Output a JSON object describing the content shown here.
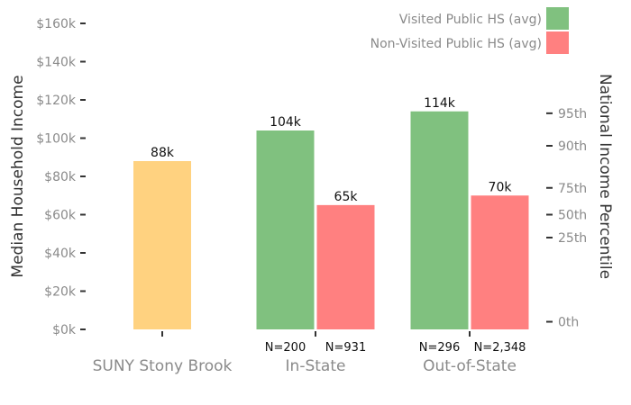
{
  "chart_data": {
    "type": "bar",
    "categories": [
      "SUNY Stony Brook",
      "In-State",
      "Out-of-State"
    ],
    "series": [
      {
        "name": "",
        "color": "#ffd280",
        "values": [
          88000,
          null,
          null
        ]
      },
      {
        "name": "Visited Public HS (avg)",
        "color": "#80c17f",
        "values": [
          null,
          104000,
          114000
        ]
      },
      {
        "name": "Non-Visited Public HS (avg)",
        "color": "#ff8080",
        "values": [
          null,
          65000,
          70000
        ]
      }
    ],
    "data_labels": [
      {
        "category": "SUNY Stony Brook",
        "series": 0,
        "text": "88k"
      },
      {
        "category": "In-State",
        "series": 1,
        "text": "104k"
      },
      {
        "category": "In-State",
        "series": 2,
        "text": "65k"
      },
      {
        "category": "Out-of-State",
        "series": 1,
        "text": "114k"
      },
      {
        "category": "Out-of-State",
        "series": 2,
        "text": "70k"
      }
    ],
    "n_labels": [
      {
        "category": "In-State",
        "series": 1,
        "text": "N=200"
      },
      {
        "category": "In-State",
        "series": 2,
        "text": "N=931"
      },
      {
        "category": "Out-of-State",
        "series": 1,
        "text": "N=296"
      },
      {
        "category": "Out-of-State",
        "series": 2,
        "text": "N=2,348"
      }
    ],
    "ylabel": "Median Household Income",
    "ylim": [
      0,
      160000
    ],
    "yticks": [
      {
        "value": 0,
        "label": "$0k"
      },
      {
        "value": 20000,
        "label": "$20k"
      },
      {
        "value": 40000,
        "label": "$40k"
      },
      {
        "value": 60000,
        "label": "$60k"
      },
      {
        "value": 80000,
        "label": "$80k"
      },
      {
        "value": 100000,
        "label": "$100k"
      },
      {
        "value": 120000,
        "label": "$120k"
      },
      {
        "value": 140000,
        "label": "$140k"
      },
      {
        "value": 160000,
        "label": "$160k"
      }
    ],
    "y2label": "National Income Percentile",
    "y2ticks": [
      {
        "value": 4000,
        "label": "0th"
      },
      {
        "value": 48000,
        "label": "25th"
      },
      {
        "value": 60000,
        "label": "50th"
      },
      {
        "value": 74000,
        "label": "75th"
      },
      {
        "value": 96000,
        "label": "90th"
      },
      {
        "value": 113000,
        "label": "95th"
      }
    ],
    "grid": false,
    "legend_position": "top-right"
  }
}
